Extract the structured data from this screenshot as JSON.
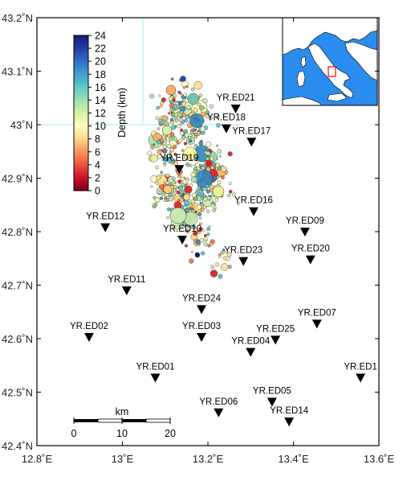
{
  "map": {
    "lon_range": [
      12.8,
      13.6
    ],
    "lat_range": [
      42.4,
      43.2
    ],
    "x_ticks": [
      {
        "value": 12.8,
        "label": "12.8˚E"
      },
      {
        "value": 13.0,
        "label": "13˚E"
      },
      {
        "value": 13.2,
        "label": "13.2˚E"
      },
      {
        "value": 13.4,
        "label": "13.4˚E"
      },
      {
        "value": 13.6,
        "label": "13.6˚E"
      }
    ],
    "y_ticks": [
      {
        "value": 43.2,
        "label": "43.2˚N"
      },
      {
        "value": 43.1,
        "label": "43.1˚N"
      },
      {
        "value": 43.0,
        "label": "43˚N"
      },
      {
        "value": 42.9,
        "label": "42.9˚N"
      },
      {
        "value": 42.8,
        "label": "42.8˚N"
      },
      {
        "value": 42.7,
        "label": "42.7˚N"
      },
      {
        "value": 42.6,
        "label": "42.6˚N"
      },
      {
        "value": 42.5,
        "label": "42.5˚N"
      },
      {
        "value": 42.4,
        "label": "42.4˚N"
      }
    ]
  },
  "colorbar": {
    "title": "Depth (km)",
    "ticks": [
      "0",
      "2",
      "4",
      "6",
      "8",
      "10",
      "12",
      "14",
      "16",
      "18",
      "20",
      "22",
      "24"
    ],
    "range": [
      0,
      24
    ]
  },
  "scalebar": {
    "title": "km",
    "ticks": [
      "0",
      "10",
      "20"
    ]
  },
  "stations": [
    {
      "name": "YR.ED21",
      "lon": 13.265,
      "lat": 43.03
    },
    {
      "name": "YR.ED18",
      "lon": 13.243,
      "lat": 42.993
    },
    {
      "name": "YR.ED17",
      "lon": 13.302,
      "lat": 42.968
    },
    {
      "name": "YR.ED19",
      "lon": 13.133,
      "lat": 42.917
    },
    {
      "name": "YR.ED16",
      "lon": 13.307,
      "lat": 42.838
    },
    {
      "name": "YR.ED12",
      "lon": 12.96,
      "lat": 42.808
    },
    {
      "name": "YR.ED09",
      "lon": 13.427,
      "lat": 42.8
    },
    {
      "name": "YR.ED10",
      "lon": 13.14,
      "lat": 42.785
    },
    {
      "name": "YR.ED20",
      "lon": 13.44,
      "lat": 42.748
    },
    {
      "name": "YR.ED23",
      "lon": 13.283,
      "lat": 42.745
    },
    {
      "name": "YR.ED11",
      "lon": 13.01,
      "lat": 42.69
    },
    {
      "name": "YR.ED24",
      "lon": 13.185,
      "lat": 42.655
    },
    {
      "name": "YR.ED07",
      "lon": 13.455,
      "lat": 42.628
    },
    {
      "name": "YR.ED02",
      "lon": 12.922,
      "lat": 42.603
    },
    {
      "name": "YR.ED03",
      "lon": 13.185,
      "lat": 42.603
    },
    {
      "name": "YR.ED25",
      "lon": 13.358,
      "lat": 42.598
    },
    {
      "name": "YR.ED04",
      "lon": 13.3,
      "lat": 42.575
    },
    {
      "name": "YR.ED01",
      "lon": 13.077,
      "lat": 42.527
    },
    {
      "name": "YR.ED1",
      "lon": 13.557,
      "lat": 42.527
    },
    {
      "name": "YR.ED05",
      "lon": 13.35,
      "lat": 42.482
    },
    {
      "name": "YR.ED06",
      "lon": 13.225,
      "lat": 42.462
    },
    {
      "name": "YR.ED14",
      "lon": 13.39,
      "lat": 42.445
    }
  ],
  "colors": {
    "station_marker": "#000000",
    "inset_sea": "#2b8cf0",
    "inset_land": "#ffffff",
    "inset_box": "#ff0000",
    "gridline": "#aee7f5"
  }
}
